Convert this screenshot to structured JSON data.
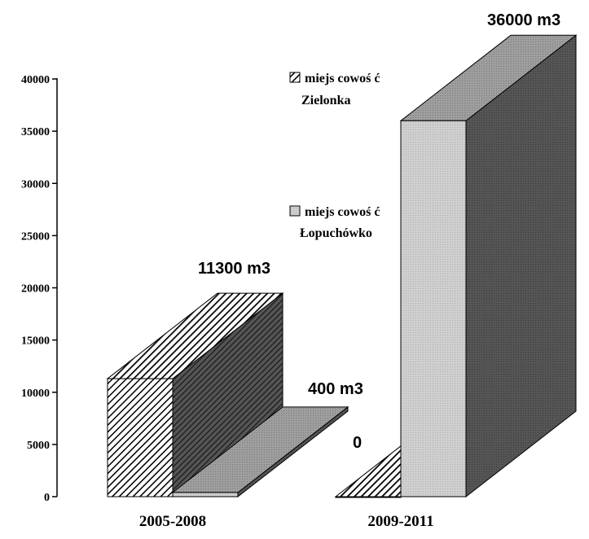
{
  "chart_data": {
    "type": "bar",
    "categories": [
      "2005-2008",
      "2009-2011"
    ],
    "series": [
      {
        "name": "miejscowość Zielonka",
        "legend_lines": [
          "miejs cowoś ć",
          "Zielonka"
        ],
        "values": [
          11300,
          0
        ],
        "labels": [
          "11300 m3",
          "0"
        ],
        "pattern": "diagonal-hatch"
      },
      {
        "name": "miejscowość Łopuchówko",
        "legend_lines": [
          "miejs cowoś ć",
          "Łopuchówko"
        ],
        "values": [
          400,
          36000
        ],
        "labels": [
          "400 m3",
          "36000 m3"
        ],
        "pattern": "light-grey-dots"
      }
    ],
    "ylim": [
      0,
      40000
    ],
    "yticks": [
      0,
      5000,
      10000,
      15000,
      20000,
      25000,
      30000,
      35000,
      40000
    ],
    "legend_position": "center-right",
    "style": "3d",
    "colors": {
      "hatch_front": "#000000",
      "light_front": "#c9c9c9",
      "light_top": "#9a9a9a",
      "dark_side": "#4d4d4d"
    }
  }
}
